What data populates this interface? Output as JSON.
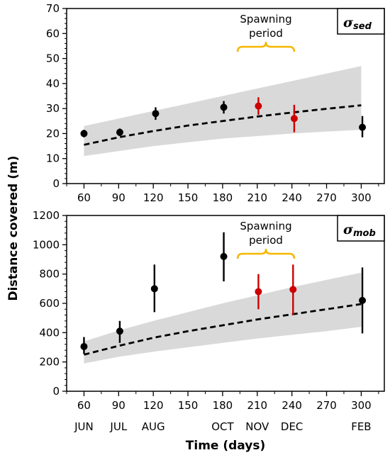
{
  "colors": {
    "band": "#d9d9d9",
    "point_default": "#000000",
    "point_spawning": "#cc0000",
    "bracket": "#f5b800",
    "trend": "#000000"
  },
  "y_axis_title": "Distance covered (m)",
  "chart_data": [
    {
      "type": "scatter",
      "panel": "sigma_sed",
      "legend_symbol": "σ",
      "legend_subscript": "sed",
      "annotation_line1": "Spawning",
      "annotation_line2": "period",
      "annotation_range": [
        193,
        242
      ],
      "xlabel": "",
      "x_ticks": [
        60,
        90,
        120,
        150,
        180,
        210,
        240,
        270,
        300
      ],
      "x_tick_labels": [
        "60",
        "90",
        "120",
        "150",
        "180",
        "210",
        "240",
        "270",
        "300"
      ],
      "xlim": [
        45,
        320
      ],
      "ylim": [
        0,
        70
      ],
      "y_ticks": [
        0,
        10,
        20,
        30,
        40,
        50,
        60,
        70
      ],
      "y_tick_labels": [
        "0",
        "10",
        "20",
        "30",
        "40",
        "50",
        "60",
        "70"
      ],
      "points": [
        {
          "x": 60,
          "y": 20,
          "low": 18.5,
          "high": 21.5,
          "spawning": false
        },
        {
          "x": 91,
          "y": 20.5,
          "low": 19,
          "high": 22,
          "spawning": false
        },
        {
          "x": 122,
          "y": 28,
          "low": 25.5,
          "high": 30.5,
          "spawning": false
        },
        {
          "x": 181,
          "y": 30.5,
          "low": 28,
          "high": 33,
          "spawning": false
        },
        {
          "x": 211,
          "y": 31,
          "low": 27.5,
          "high": 34.5,
          "spawning": true
        },
        {
          "x": 242,
          "y": 26,
          "low": 20.5,
          "high": 31.5,
          "spawning": true
        },
        {
          "x": 301,
          "y": 22.5,
          "low": 18.5,
          "high": 27,
          "spawning": false
        }
      ],
      "trend": {
        "x": [
          60,
          90,
          120,
          150,
          180,
          210,
          240,
          270,
          300
        ],
        "y": [
          15.5,
          18.5,
          21,
          23.2,
          25,
          26.8,
          28.4,
          29.9,
          31.3
        ]
      },
      "band": {
        "x": [
          60,
          90,
          120,
          150,
          180,
          210,
          240,
          270,
          300
        ],
        "low": [
          11,
          13,
          15,
          16.5,
          18,
          19,
          20,
          20.8,
          21.5
        ],
        "high": [
          23,
          26,
          29,
          32,
          35,
          38,
          41,
          44,
          47
        ]
      }
    },
    {
      "type": "scatter",
      "panel": "sigma_mob",
      "legend_symbol": "σ",
      "legend_subscript": "mob",
      "annotation_line1": "Spawning",
      "annotation_line2": "period",
      "annotation_range": [
        193,
        242
      ],
      "xlabel": "Time (days)",
      "x_ticks": [
        60,
        90,
        120,
        150,
        180,
        210,
        240,
        270,
        300
      ],
      "x_tick_labels": [
        "60",
        "90",
        "120",
        "150",
        "180",
        "210",
        "240",
        "270",
        "300"
      ],
      "month_labels": [
        {
          "x": 60,
          "label": "JUN"
        },
        {
          "x": 90,
          "label": "JUL"
        },
        {
          "x": 120,
          "label": "AUG"
        },
        {
          "x": 180,
          "label": "OCT"
        },
        {
          "x": 210,
          "label": "NOV"
        },
        {
          "x": 240,
          "label": "DEC"
        },
        {
          "x": 300,
          "label": "FEB"
        }
      ],
      "xlim": [
        45,
        320
      ],
      "ylim": [
        0,
        1200
      ],
      "y_ticks": [
        0,
        200,
        400,
        600,
        800,
        1000,
        1200
      ],
      "y_tick_labels": [
        "0",
        "200",
        "400",
        "600",
        "800",
        "1000",
        "1200"
      ],
      "points": [
        {
          "x": 60,
          "y": 305,
          "low": 255,
          "high": 370,
          "spawning": false
        },
        {
          "x": 91,
          "y": 410,
          "low": 330,
          "high": 480,
          "spawning": false
        },
        {
          "x": 121,
          "y": 700,
          "low": 540,
          "high": 865,
          "spawning": false
        },
        {
          "x": 181,
          "y": 920,
          "low": 750,
          "high": 1085,
          "spawning": false
        },
        {
          "x": 211,
          "y": 680,
          "low": 560,
          "high": 800,
          "spawning": true
        },
        {
          "x": 241,
          "y": 695,
          "low": 520,
          "high": 865,
          "spawning": true
        },
        {
          "x": 301,
          "y": 620,
          "low": 395,
          "high": 845,
          "spawning": false
        }
      ],
      "trend": {
        "x": [
          60,
          90,
          120,
          150,
          180,
          210,
          240,
          270,
          300
        ],
        "y": [
          250,
          310,
          365,
          410,
          450,
          490,
          525,
          560,
          595
        ]
      },
      "band": {
        "x": [
          60,
          90,
          120,
          150,
          180,
          210,
          240,
          270,
          300
        ],
        "low": [
          190,
          235,
          270,
          300,
          330,
          360,
          385,
          410,
          440
        ],
        "high": [
          340,
          415,
          480,
          540,
          600,
          655,
          710,
          760,
          810
        ]
      }
    }
  ]
}
